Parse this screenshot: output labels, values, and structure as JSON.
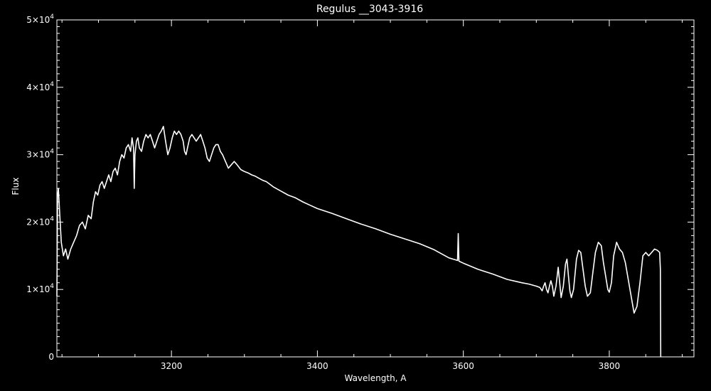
{
  "chart_data": {
    "type": "line",
    "title": "Regulus __3043-3916",
    "xlabel": "Wavelength, A",
    "ylabel": "Flux",
    "xlim": [
      3043,
      3916
    ],
    "ylim": [
      0,
      50000
    ],
    "grid": false,
    "legend": "none",
    "colors": {
      "background": "#000000",
      "foreground": "#ffffff"
    },
    "x_ticks": [
      {
        "value": 3200,
        "label": "3200"
      },
      {
        "value": 3400,
        "label": "3400"
      },
      {
        "value": 3600,
        "label": "3600"
      },
      {
        "value": 3800,
        "label": "3800"
      }
    ],
    "y_ticks": [
      {
        "value": 0,
        "mantissa": "0",
        "exponent": ""
      },
      {
        "value": 10000,
        "mantissa": "1×10",
        "exponent": "4"
      },
      {
        "value": 20000,
        "mantissa": "2×10",
        "exponent": "4"
      },
      {
        "value": 30000,
        "mantissa": "3×10",
        "exponent": "4"
      },
      {
        "value": 40000,
        "mantissa": "4×10",
        "exponent": "4"
      },
      {
        "value": 50000,
        "mantissa": "5×10",
        "exponent": "4"
      }
    ],
    "series": [
      {
        "color": "#ffffff",
        "points": [
          [
            3043,
            9000
          ],
          [
            3044,
            24000
          ],
          [
            3045,
            25000
          ],
          [
            3047,
            21000
          ],
          [
            3049,
            17000
          ],
          [
            3052,
            15000
          ],
          [
            3055,
            16000
          ],
          [
            3058,
            14500
          ],
          [
            3062,
            16000
          ],
          [
            3066,
            17000
          ],
          [
            3070,
            18000
          ],
          [
            3074,
            19500
          ],
          [
            3078,
            20000
          ],
          [
            3082,
            19000
          ],
          [
            3086,
            21000
          ],
          [
            3090,
            20500
          ],
          [
            3093,
            23000
          ],
          [
            3096,
            24500
          ],
          [
            3099,
            24000
          ],
          [
            3102,
            25500
          ],
          [
            3105,
            26000
          ],
          [
            3108,
            25000
          ],
          [
            3111,
            26000
          ],
          [
            3114,
            27000
          ],
          [
            3117,
            26000
          ],
          [
            3120,
            27500
          ],
          [
            3123,
            28000
          ],
          [
            3126,
            27000
          ],
          [
            3129,
            29000
          ],
          [
            3132,
            30000
          ],
          [
            3135,
            29500
          ],
          [
            3138,
            31000
          ],
          [
            3141,
            31500
          ],
          [
            3144,
            30500
          ],
          [
            3146,
            32500
          ],
          [
            3148,
            31000
          ],
          [
            3149,
            25000
          ],
          [
            3150,
            30000
          ],
          [
            3152,
            32000
          ],
          [
            3154,
            32500
          ],
          [
            3156,
            31000
          ],
          [
            3159,
            30500
          ],
          [
            3162,
            32000
          ],
          [
            3165,
            33000
          ],
          [
            3168,
            32500
          ],
          [
            3171,
            33000
          ],
          [
            3174,
            32000
          ],
          [
            3177,
            31000
          ],
          [
            3180,
            32000
          ],
          [
            3183,
            33000
          ],
          [
            3186,
            33500
          ],
          [
            3189,
            34200
          ],
          [
            3192,
            32000
          ],
          [
            3195,
            30000
          ],
          [
            3198,
            31000
          ],
          [
            3201,
            32500
          ],
          [
            3204,
            33500
          ],
          [
            3207,
            33000
          ],
          [
            3210,
            33500
          ],
          [
            3213,
            33000
          ],
          [
            3216,
            32000
          ],
          [
            3218,
            30500
          ],
          [
            3220,
            30000
          ],
          [
            3222,
            31000
          ],
          [
            3225,
            32500
          ],
          [
            3228,
            33000
          ],
          [
            3231,
            32500
          ],
          [
            3234,
            32000
          ],
          [
            3237,
            32500
          ],
          [
            3240,
            33000
          ],
          [
            3243,
            32000
          ],
          [
            3246,
            31000
          ],
          [
            3249,
            29500
          ],
          [
            3252,
            29000
          ],
          [
            3255,
            30000
          ],
          [
            3258,
            31000
          ],
          [
            3261,
            31500
          ],
          [
            3264,
            31500
          ],
          [
            3267,
            30500
          ],
          [
            3270,
            30000
          ],
          [
            3274,
            29000
          ],
          [
            3278,
            28000
          ],
          [
            3282,
            28500
          ],
          [
            3286,
            29000
          ],
          [
            3290,
            28500
          ],
          [
            3295,
            27800
          ],
          [
            3300,
            27500
          ],
          [
            3305,
            27300
          ],
          [
            3310,
            27000
          ],
          [
            3315,
            26800
          ],
          [
            3320,
            26500
          ],
          [
            3325,
            26200
          ],
          [
            3330,
            26000
          ],
          [
            3340,
            25200
          ],
          [
            3350,
            24600
          ],
          [
            3360,
            24000
          ],
          [
            3370,
            23600
          ],
          [
            3380,
            23000
          ],
          [
            3390,
            22500
          ],
          [
            3400,
            22000
          ],
          [
            3420,
            21300
          ],
          [
            3440,
            20500
          ],
          [
            3460,
            19700
          ],
          [
            3480,
            19000
          ],
          [
            3500,
            18200
          ],
          [
            3520,
            17500
          ],
          [
            3540,
            16800
          ],
          [
            3560,
            15900
          ],
          [
            3580,
            14700
          ],
          [
            3592,
            14300
          ],
          [
            3593,
            18300
          ],
          [
            3594,
            14200
          ],
          [
            3600,
            13900
          ],
          [
            3620,
            13000
          ],
          [
            3640,
            12300
          ],
          [
            3660,
            11500
          ],
          [
            3680,
            11000
          ],
          [
            3690,
            10800
          ],
          [
            3700,
            10500
          ],
          [
            3705,
            10300
          ],
          [
            3708,
            9800
          ],
          [
            3710,
            10500
          ],
          [
            3712,
            11000
          ],
          [
            3714,
            10000
          ],
          [
            3716,
            9500
          ],
          [
            3718,
            10500
          ],
          [
            3720,
            11300
          ],
          [
            3722,
            10500
          ],
          [
            3724,
            9000
          ],
          [
            3727,
            10500
          ],
          [
            3730,
            13300
          ],
          [
            3732,
            11000
          ],
          [
            3734,
            8800
          ],
          [
            3737,
            10500
          ],
          [
            3740,
            13800
          ],
          [
            3742,
            14500
          ],
          [
            3744,
            12000
          ],
          [
            3746,
            9800
          ],
          [
            3748,
            8800
          ],
          [
            3751,
            10000
          ],
          [
            3755,
            14500
          ],
          [
            3758,
            15800
          ],
          [
            3761,
            15500
          ],
          [
            3764,
            13000
          ],
          [
            3767,
            10500
          ],
          [
            3770,
            9000
          ],
          [
            3774,
            9500
          ],
          [
            3778,
            13000
          ],
          [
            3781,
            15500
          ],
          [
            3785,
            17000
          ],
          [
            3789,
            16500
          ],
          [
            3792,
            14000
          ],
          [
            3795,
            12000
          ],
          [
            3798,
            10000
          ],
          [
            3800,
            9600
          ],
          [
            3803,
            11000
          ],
          [
            3806,
            15000
          ],
          [
            3810,
            17000
          ],
          [
            3814,
            16000
          ],
          [
            3818,
            15500
          ],
          [
            3822,
            14000
          ],
          [
            3826,
            11500
          ],
          [
            3830,
            9000
          ],
          [
            3834,
            6500
          ],
          [
            3838,
            7500
          ],
          [
            3842,
            11000
          ],
          [
            3846,
            15000
          ],
          [
            3850,
            15500
          ],
          [
            3854,
            15000
          ],
          [
            3858,
            15500
          ],
          [
            3862,
            16000
          ],
          [
            3866,
            15800
          ],
          [
            3869,
            15500
          ],
          [
            3870,
            13000
          ],
          [
            3870.5,
            0
          ]
        ]
      }
    ]
  }
}
